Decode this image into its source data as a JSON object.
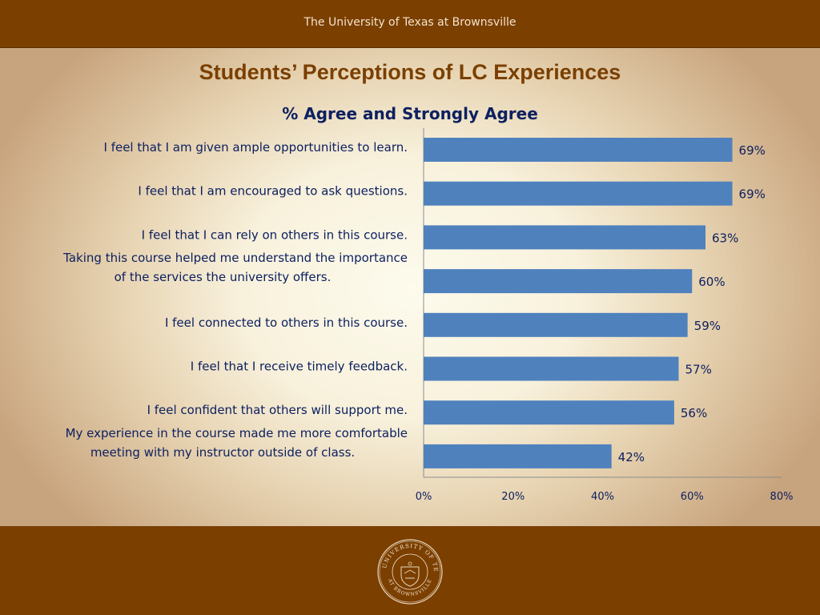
{
  "header": {
    "text": "The University of Texas at Brownsville"
  },
  "slide": {
    "title": "Students’ Perceptions of LC Experiences",
    "subtitle": "% Agree and Strongly Agree"
  },
  "seal": {
    "icon": "university-seal-icon",
    "top_text": "THE UNIVERSITY OF TEXAS",
    "bottom_text": "AT BROWNSVILLE"
  },
  "colors": {
    "bar": "#4f81bd",
    "text": "#0d2060",
    "brand_brown": "#7b3f00"
  },
  "chart_data": {
    "type": "bar",
    "orientation": "horizontal",
    "title": "% Agree and Strongly Agree",
    "categories": [
      [
        "I feel that I am given ample opportunities to learn."
      ],
      [
        "I feel that I am encouraged to ask questions."
      ],
      [
        "I feel that I can rely on others in this course."
      ],
      [
        "Taking this course helped me understand the importance",
        "of the services the university offers."
      ],
      [
        "I feel connected to others in this course."
      ],
      [
        "I feel that I receive timely feedback."
      ],
      [
        "I feel confident that others will support me."
      ],
      [
        "My experience in the course made me more comfortable",
        "meeting with my instructor outside of class."
      ]
    ],
    "values": [
      69,
      69,
      63,
      60,
      59,
      57,
      56,
      42
    ],
    "value_labels": [
      "69%",
      "69%",
      "63%",
      "60%",
      "59%",
      "57%",
      "56%",
      "42%"
    ],
    "xlim": [
      0,
      80
    ],
    "xticks": [
      0,
      20,
      40,
      60,
      80
    ],
    "xtick_labels": [
      "0%",
      "20%",
      "40%",
      "60%",
      "80%"
    ],
    "grid": false,
    "legend": "none"
  }
}
